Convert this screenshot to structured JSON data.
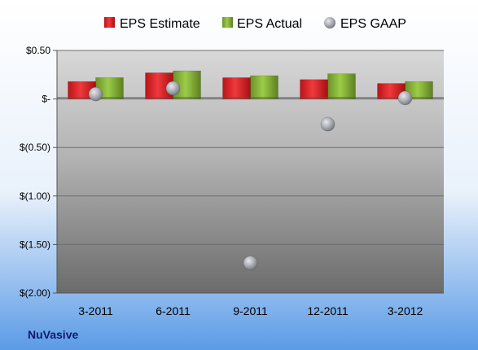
{
  "chart_data": {
    "type": "bar",
    "categories": [
      "3-2011",
      "6-2011",
      "9-2011",
      "12-2011",
      "3-2012"
    ],
    "series": [
      {
        "name": "EPS Estimate",
        "type": "bar",
        "color": "#e5292c",
        "values": [
          0.18,
          0.27,
          0.22,
          0.2,
          0.16
        ]
      },
      {
        "name": "EPS Actual",
        "type": "bar",
        "color": "#8bb63b",
        "values": [
          0.22,
          0.29,
          0.24,
          0.26,
          0.18
        ]
      },
      {
        "name": "EPS GAAP",
        "type": "scatter",
        "color": "#a8acb2",
        "values": [
          0.05,
          0.11,
          -1.69,
          -0.26,
          0.01
        ]
      }
    ],
    "ylim": [
      -2.0,
      0.5
    ],
    "yticks": [
      0.5,
      0,
      -0.5,
      -1.0,
      -1.5,
      -2.0
    ],
    "ytick_labels": [
      "$0.50",
      "$-",
      "$(0.50)",
      "$(1.00)",
      "$(1.50)",
      "$(2.00)"
    ],
    "grid": true,
    "legend_position": "top"
  },
  "company": "NuVasive"
}
